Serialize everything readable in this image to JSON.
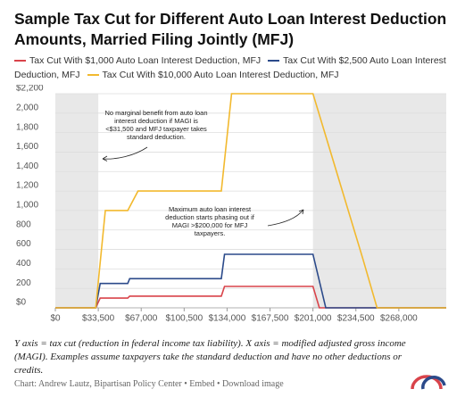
{
  "chart_data": {
    "type": "line",
    "title": "Sample Tax Cut for Different Auto Loan Interest Deduction Amounts, Married Filing Jointly (MFJ)",
    "xlim": [
      0,
      305000
    ],
    "ylim": [
      0,
      2200
    ],
    "xticks": [
      {
        "value": 0,
        "label": "$0"
      },
      {
        "value": 33500,
        "label": "$33,500"
      },
      {
        "value": 67000,
        "label": "$67,000"
      },
      {
        "value": 100500,
        "label": "$100,500"
      },
      {
        "value": 134000,
        "label": "$134,000"
      },
      {
        "value": 167500,
        "label": "$167,500"
      },
      {
        "value": 201000,
        "label": "$201,000"
      },
      {
        "value": 234500,
        "label": "$234,500"
      },
      {
        "value": 268000,
        "label": "$268,000"
      }
    ],
    "yticks": [
      {
        "value": 0,
        "label": "$0"
      },
      200,
      400,
      600,
      800,
      {
        "value": 1000,
        "label": "1,000"
      },
      {
        "value": 1200,
        "label": "1,200"
      },
      {
        "value": 1400,
        "label": "1,400"
      },
      {
        "value": 1600,
        "label": "1,600"
      },
      {
        "value": 1800,
        "label": "1,800"
      },
      {
        "value": 2000,
        "label": "2,000"
      },
      {
        "value": 2200,
        "label": "$2,200"
      }
    ],
    "grid": true,
    "shaded_ranges": [
      [
        0,
        33500
      ],
      [
        201000,
        305000
      ]
    ],
    "series": [
      {
        "name": "Tax Cut With $1,000 Auto Loan Interest Deduction, MFJ",
        "color": "#d9434a",
        "x": [
          0,
          31500,
          35000,
          56500,
          58000,
          129500,
          132000,
          201000,
          206000,
          305000
        ],
        "values": [
          0,
          0,
          100,
          100,
          120,
          120,
          220,
          220,
          0,
          0
        ]
      },
      {
        "name": "Tax Cut With $2,500 Auto Loan Interest Deduction, MFJ",
        "color": "#2b4a8a",
        "x": [
          0,
          31500,
          35000,
          56500,
          58000,
          129500,
          132000,
          201000,
          211000,
          305000
        ],
        "values": [
          0,
          0,
          250,
          250,
          300,
          300,
          550,
          550,
          0,
          0
        ]
      },
      {
        "name": "Tax Cut With $10,000 Auto Loan Interest Deduction, MFJ",
        "color": "#f2b92e",
        "x": [
          0,
          31500,
          39000,
          56500,
          64500,
          129500,
          137500,
          201000,
          240000,
          251000,
          305000
        ],
        "values": [
          0,
          0,
          1000,
          1000,
          1200,
          1200,
          2200,
          2200,
          500,
          0,
          0
        ]
      }
    ],
    "annotations": [
      {
        "lines": [
          "No marginal benefit from auto loan",
          "interest deduction if MAGI is",
          "<$31,500 and MFJ taxpayer takes",
          "standard deduction."
        ]
      },
      {
        "lines": [
          "Maximum auto loan interest",
          "deduction starts phasing out if",
          "MAGI >$200,000 for MFJ",
          "taxpayers."
        ]
      }
    ],
    "note": "Y axis = tax cut (reduction in federal income tax liability). X axis = modified adjusted gross income (MAGI). Examples assume taxpayers take the standard deduction and have no other deductions or credits.",
    "source": "Chart: Andrew Lautz, Bipartisan Policy Center • Embed • Download image"
  }
}
